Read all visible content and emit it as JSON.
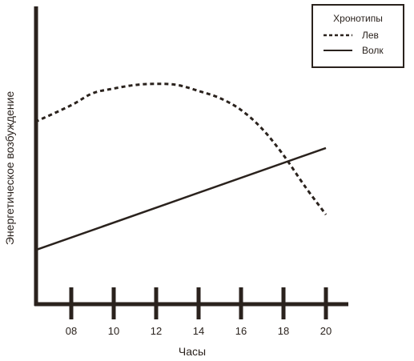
{
  "chart_data": {
    "type": "line",
    "title": "",
    "xlabel": "Часы",
    "ylabel": "Энергетическое возбуждение",
    "xlim": [
      6.2,
      21.0
    ],
    "ylim": [
      0,
      100
    ],
    "x_ticks": [
      8,
      10,
      12,
      14,
      16,
      18,
      20
    ],
    "x_tick_labels": [
      "08",
      "10",
      "12",
      "14",
      "16",
      "18",
      "20"
    ],
    "grid": false,
    "legend": {
      "title": "Хронотипы",
      "position": "top-right",
      "entries": [
        {
          "label": "Лев",
          "style": "dashed"
        },
        {
          "label": "Волк",
          "style": "solid"
        }
      ]
    },
    "series": [
      {
        "name": "Лев",
        "style": "dashed",
        "x": [
          6.3,
          8,
          9,
          10,
          11,
          12,
          13,
          14,
          15,
          16,
          17,
          18,
          19,
          20
        ],
        "y": [
          74,
          81,
          86,
          88,
          89.5,
          90,
          89.5,
          87,
          84,
          79,
          71,
          60,
          47,
          35
        ]
      },
      {
        "name": "Волк",
        "style": "solid",
        "x": [
          6.3,
          20
        ],
        "y": [
          20,
          63
        ]
      }
    ]
  },
  "colors": {
    "ink": "#2a221d",
    "background": "#ffffff"
  }
}
